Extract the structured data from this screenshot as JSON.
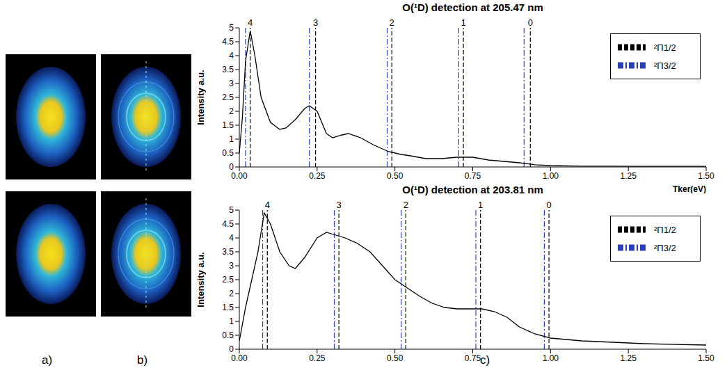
{
  "panel_labels": [
    "a)",
    "b)",
    "c)"
  ],
  "chart_data": [
    {
      "type": "line",
      "title": "O(¹D) detection at 205.47 nm",
      "x_label": "Tker(eV)",
      "y_label": "Intensity a.u.",
      "x": [
        0,
        0.01,
        0.02,
        0.035,
        0.05,
        0.07,
        0.1,
        0.13,
        0.15,
        0.18,
        0.21,
        0.225,
        0.25,
        0.28,
        0.3,
        0.33,
        0.35,
        0.39,
        0.43,
        0.48,
        0.52,
        0.55,
        0.6,
        0.65,
        0.7,
        0.75,
        0.8,
        0.85,
        0.9,
        0.95,
        1.0,
        1.1,
        1.2,
        1.3,
        1.4,
        1.5
      ],
      "values": [
        0.5,
        1.8,
        3.8,
        4.9,
        4.0,
        2.5,
        1.6,
        1.35,
        1.4,
        1.7,
        2.1,
        2.2,
        2.0,
        1.2,
        1.05,
        1.15,
        1.2,
        1.05,
        0.8,
        0.55,
        0.45,
        0.4,
        0.3,
        0.3,
        0.35,
        0.35,
        0.25,
        0.2,
        0.15,
        0.08,
        0.05,
        0.03,
        0.03,
        0.02,
        0.02,
        0.02
      ],
      "color": "#000000",
      "line_style": "solid",
      "marker": "none",
      "xlim": [
        0,
        1.5
      ],
      "xticks": [
        {
          "value": 0,
          "label": "0.00"
        },
        {
          "value": 0.25,
          "label": "0.25"
        },
        {
          "value": 0.5,
          "label": "0.50"
        },
        {
          "value": 0.75,
          "label": "0.75"
        },
        {
          "value": 1,
          "label": "1.00"
        },
        {
          "value": 1.25,
          "label": "1.25"
        },
        {
          "value": 1.5,
          "label": "1.50"
        }
      ],
      "ylim": [
        0,
        5
      ],
      "yticks": [
        0,
        0.5,
        1,
        1.5,
        2,
        2.5,
        3,
        3.5,
        4,
        4.5,
        5
      ],
      "legend": "upper right",
      "reference_lines": {
        "labels": [
          "4",
          "3",
          "2",
          "1",
          "0"
        ],
        "series": [
          {
            "name": "²Π1/2",
            "color": "#000000",
            "line_style": "dashed",
            "x": [
              0.035,
              0.245,
              0.49,
              0.72,
              0.935
            ]
          },
          {
            "name": "²Π3/2",
            "color": "#2b3fb8",
            "line_style": "dashdot",
            "x": [
              0.02,
              0.225,
              0.475,
              0.705,
              0.915
            ]
          }
        ]
      }
    },
    {
      "type": "line",
      "title": "O(¹D) detection at 203.81 nm",
      "y_label": "Intensity a.u.",
      "x": [
        0,
        0.02,
        0.04,
        0.06,
        0.08,
        0.1,
        0.13,
        0.16,
        0.18,
        0.21,
        0.25,
        0.28,
        0.31,
        0.34,
        0.38,
        0.42,
        0.46,
        0.5,
        0.54,
        0.58,
        0.62,
        0.66,
        0.7,
        0.75,
        0.78,
        0.82,
        0.86,
        0.9,
        0.95,
        1.0,
        1.1,
        1.2,
        1.3,
        1.4,
        1.5
      ],
      "values": [
        0.3,
        1.5,
        2.5,
        3.5,
        4.9,
        4.5,
        3.5,
        3.0,
        2.9,
        3.3,
        4.0,
        4.2,
        4.1,
        4.0,
        3.8,
        3.5,
        3.0,
        2.5,
        2.2,
        1.9,
        1.65,
        1.5,
        1.45,
        1.45,
        1.45,
        1.35,
        1.15,
        0.8,
        0.55,
        0.4,
        0.3,
        0.25,
        0.2,
        0.17,
        0.15
      ],
      "color": "#000000",
      "line_style": "solid",
      "marker": "none",
      "xlim": [
        0,
        1.5
      ],
      "xticks": [
        {
          "value": 0,
          "label": "0.00"
        },
        {
          "value": 0.25,
          "label": "0.25"
        },
        {
          "value": 0.5,
          "label": "0.50"
        },
        {
          "value": 0.75,
          "label": "0.75"
        },
        {
          "value": 1,
          "label": "1.00"
        },
        {
          "value": 1.25,
          "label": "1.25"
        },
        {
          "value": 1.5,
          "label": "1.50"
        }
      ],
      "ylim": [
        0,
        5
      ],
      "yticks": [
        0,
        0.5,
        1,
        1.5,
        2,
        2.5,
        3,
        3.5,
        4,
        4.5,
        5
      ],
      "legend": "upper right",
      "reference_lines": {
        "labels": [
          "4",
          "3",
          "2",
          "1",
          "0"
        ],
        "series": [
          {
            "name": "²Π1/2",
            "color": "#000000",
            "line_style": "dashed",
            "x": [
              0.09,
              0.32,
              0.535,
              0.775,
              0.995
            ]
          },
          {
            "name": "²Π3/2",
            "color": "#2b3fb8",
            "line_style": "dashdot",
            "x": [
              0.075,
              0.305,
              0.52,
              0.76,
              0.98
            ]
          }
        ]
      }
    }
  ]
}
